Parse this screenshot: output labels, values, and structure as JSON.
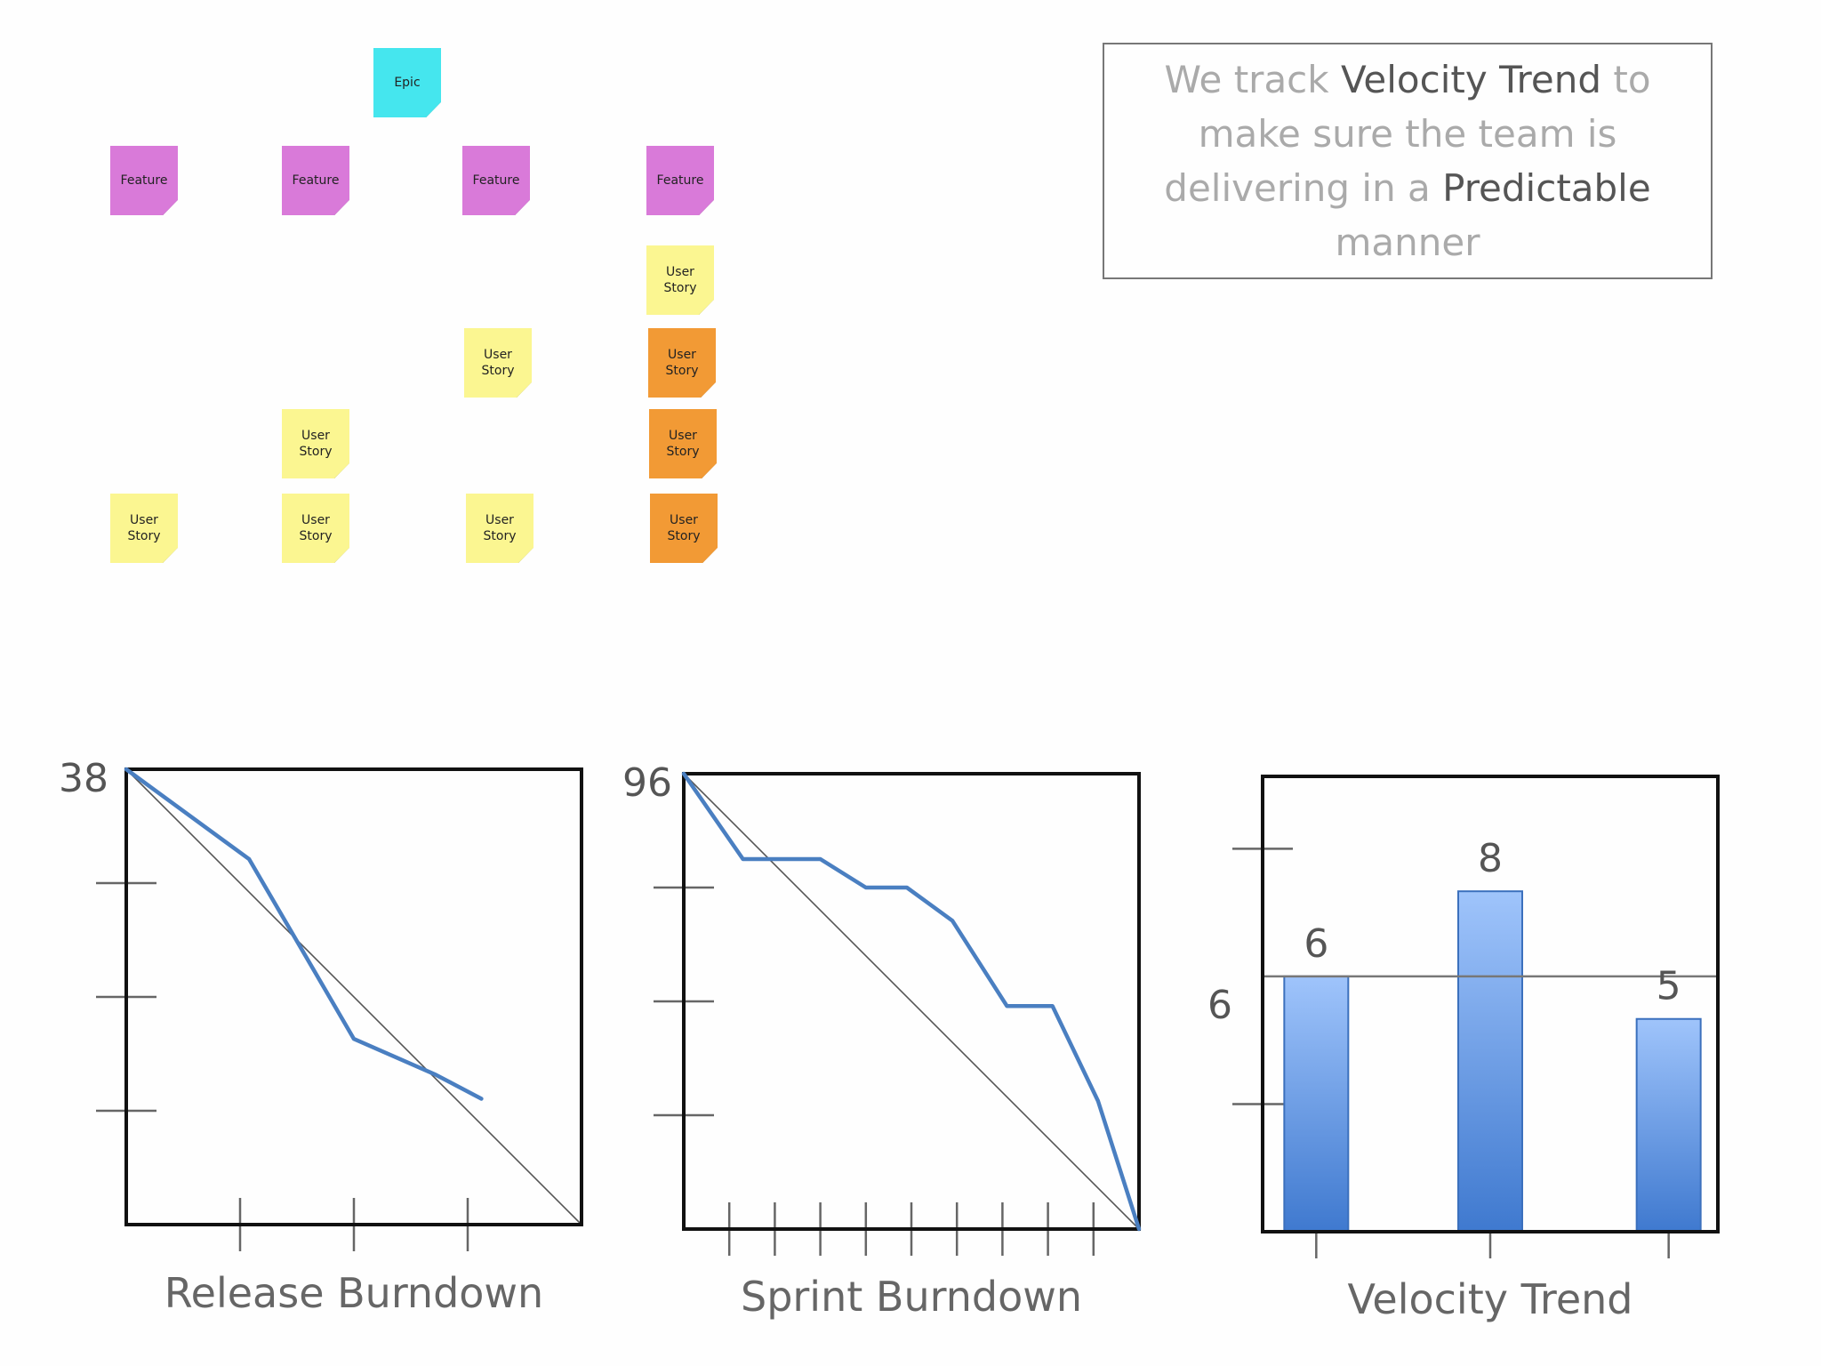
{
  "board": {
    "epic": "Epic",
    "features": [
      "Feature",
      "Feature",
      "Feature",
      "Feature"
    ],
    "story_label": "User Story"
  },
  "callout": {
    "t1": "We track ",
    "t2": "Velocity Trend",
    "t3": " to make sure the team is delivering in a ",
    "t4": "Predictable",
    "t5": " manner"
  },
  "colors": {
    "line": "#4a7fc1",
    "ideal": "#555555",
    "axis": "#111111",
    "bar_top": "#9fc4fb",
    "bar_bottom": "#3f79cf"
  },
  "chart_data": [
    {
      "type": "line",
      "title": "Release Burndown",
      "ylabel_top": "38",
      "ylim": [
        0,
        38
      ],
      "x_ticks": 3,
      "y_ticks": 3,
      "ideal": {
        "x": [
          0,
          1
        ],
        "y": [
          38,
          0
        ]
      },
      "series": [
        {
          "x": [
            0,
            0.27,
            0.5,
            0.68,
            0.78
          ],
          "y": [
            38,
            30.5,
            15.5,
            12.5,
            10.5
          ]
        }
      ]
    },
    {
      "type": "line",
      "title": "Sprint Burndown",
      "ylabel_top": "96",
      "ylim": [
        0,
        96
      ],
      "x_ticks": 9,
      "y_ticks": 3,
      "ideal": {
        "x": [
          0,
          1
        ],
        "y": [
          96,
          0
        ]
      },
      "series": [
        {
          "x": [
            0,
            0.13,
            0.3,
            0.4,
            0.49,
            0.59,
            0.71,
            0.81,
            0.91,
            1.0
          ],
          "y": [
            96,
            78,
            78,
            72,
            72,
            65,
            47,
            47,
            27,
            0
          ]
        }
      ]
    },
    {
      "type": "bar",
      "title": "Velocity Trend",
      "reference_label": "6",
      "reference_value": 6,
      "ylim": [
        0,
        10.7
      ],
      "y_ticks": [
        3,
        6,
        9
      ],
      "categories": [
        "",
        "",
        ""
      ],
      "values": [
        6,
        8,
        5
      ],
      "value_labels": [
        "6",
        "8",
        "5"
      ]
    }
  ]
}
